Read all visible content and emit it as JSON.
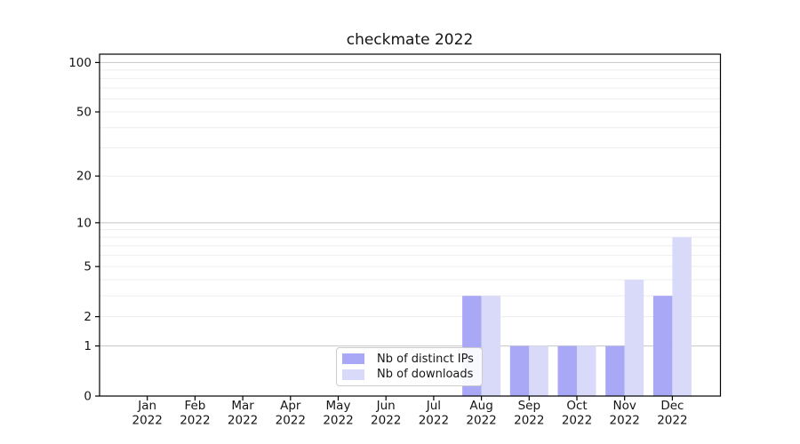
{
  "chart_data": {
    "type": "bar",
    "title": "checkmate 2022",
    "x_tick_line1": [
      "Jan",
      "Feb",
      "Mar",
      "Apr",
      "May",
      "Jun",
      "Jul",
      "Aug",
      "Sep",
      "Oct",
      "Nov",
      "Dec"
    ],
    "x_tick_line2": [
      "2022",
      "2022",
      "2022",
      "2022",
      "2022",
      "2022",
      "2022",
      "2022",
      "2022",
      "2022",
      "2022",
      "2022"
    ],
    "series": [
      {
        "name": "Nb of distinct IPs",
        "color": "#a8a8f7",
        "values": [
          0,
          0,
          0,
          0,
          0,
          0,
          0,
          3,
          1,
          1,
          1,
          3
        ]
      },
      {
        "name": "Nb of downloads",
        "color": "#d9dafa",
        "values": [
          0,
          0,
          0,
          0,
          0,
          0,
          0,
          3,
          1,
          1,
          4,
          8
        ]
      }
    ],
    "yscale": "log10(1+y)",
    "ylim": [
      0,
      111
    ],
    "yticks": {
      "values": [
        0,
        1,
        2,
        5,
        10,
        20,
        50,
        100
      ],
      "labels": [
        "0",
        "1",
        "2",
        "5",
        "10",
        "20",
        "50",
        "100"
      ]
    },
    "major_gridlines": [
      1,
      10,
      100
    ],
    "minor_gridlines": [
      2,
      3,
      4,
      5,
      6,
      7,
      8,
      9,
      20,
      30,
      40,
      50,
      60,
      70,
      80,
      90
    ],
    "grid": "horizontal-only",
    "legend": {
      "position": "inside-lower-center",
      "entries": [
        "Nb of distinct IPs",
        "Nb of downloads"
      ]
    }
  },
  "colors": {
    "bar_distinct_ips": "#a8a8f7",
    "bar_downloads": "#d9dafa",
    "grid_major": "#c4c4c4",
    "grid_minor": "#ededed",
    "spine": "#000000",
    "tick": "#000000",
    "text": "#151515",
    "legend_border": "#cccccc",
    "background": "#ffffff"
  }
}
